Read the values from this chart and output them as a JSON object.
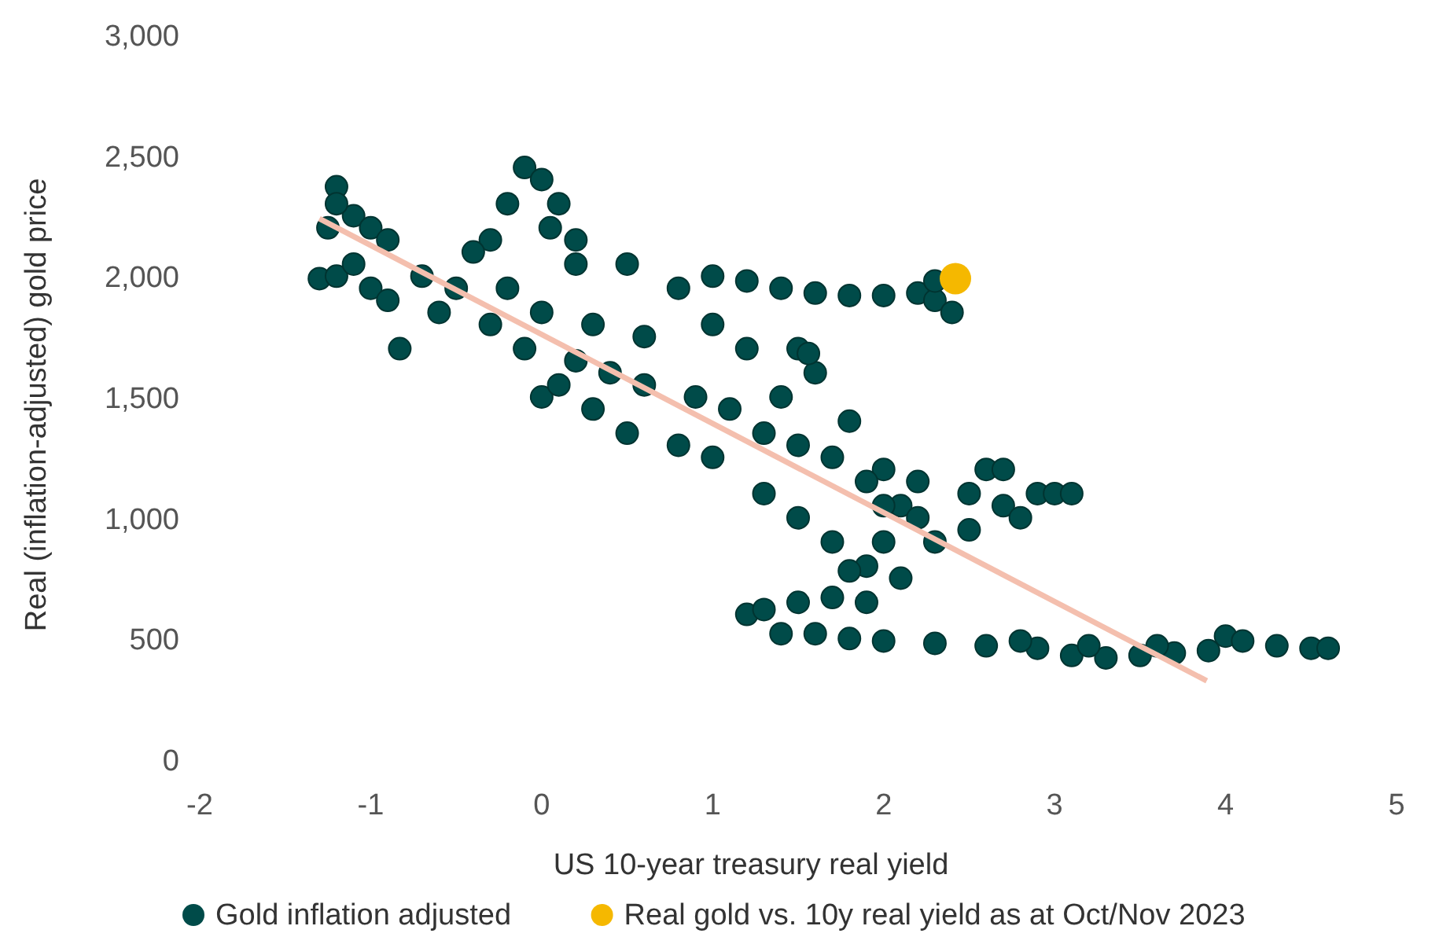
{
  "chart_data": {
    "type": "scatter",
    "xlabel": "US 10-year treasury real yield",
    "ylabel": "Real (inflation-adjusted) gold price",
    "xlim": [
      -2,
      5
    ],
    "ylim": [
      0,
      3000
    ],
    "xticks": [
      -2,
      -1,
      0,
      1,
      2,
      3,
      4,
      5
    ],
    "yticks": [
      {
        "value": 0,
        "label": "0"
      },
      {
        "value": 500,
        "label": "500"
      },
      {
        "value": 1000,
        "label": "1,000"
      },
      {
        "value": 1500,
        "label": "1,500"
      },
      {
        "value": 2000,
        "label": "2,000"
      },
      {
        "value": 2500,
        "label": "2,500"
      },
      {
        "value": 3000,
        "label": "3,000"
      }
    ],
    "grid": false,
    "legend": "bottom",
    "marker": "circle",
    "series": [
      {
        "name": "Gold inflation adjusted",
        "color": "#004b49",
        "x": [
          -1.3,
          -1.2,
          -1.25,
          -1.2,
          -1.1,
          -1.0,
          -0.9,
          -1.1,
          -1.0,
          -0.9,
          -0.83,
          -1.2,
          -0.1,
          0,
          0.1,
          -0.2,
          -0.3,
          0.2,
          0.2,
          0.05,
          0.5,
          0.8,
          1.0,
          1.2,
          1.5,
          1.6,
          0,
          0.3,
          0.5,
          0.8,
          1.0,
          1.3,
          1.5,
          1.7,
          1.0,
          1.2,
          1.4,
          1.6,
          1.8,
          2.0,
          2.2,
          2.3,
          2.4,
          2.3,
          1.56,
          2.0,
          2.2,
          2.5,
          2.7,
          2.9,
          3.0,
          3.1,
          2.6,
          2.7,
          2.8,
          2.5,
          2.0,
          1.9,
          1.8,
          2.1,
          1.9,
          1.2,
          1.3,
          1.5,
          1.7,
          1.4,
          1.6,
          1.8,
          2.0,
          2.3,
          2.6,
          2.9,
          3.1,
          3.3,
          3.5,
          3.7,
          3.9,
          4.0,
          4.1,
          4.3,
          4.5,
          4.6,
          3.2,
          2.8,
          3.6,
          -0.5,
          -0.3,
          -0.1,
          0.2,
          0.4,
          0.6,
          0.9,
          1.1,
          1.3,
          1.5,
          1.7,
          1.9,
          2.1,
          2.3,
          0,
          -0.7,
          -0.6,
          -0.4,
          0.3,
          0.6,
          1.4,
          1.8,
          2.0,
          2.2,
          0.1,
          -0.2
        ],
        "values": [
          1990,
          2000,
          2200,
          2370,
          2250,
          2200,
          2150,
          2050,
          1950,
          1900,
          1700,
          2300,
          2450,
          2400,
          2300,
          2300,
          2150,
          2050,
          2150,
          2200,
          2050,
          1950,
          1800,
          1700,
          1700,
          1600,
          1500,
          1450,
          1350,
          1300,
          1250,
          1100,
          1000,
          900,
          2000,
          1980,
          1950,
          1930,
          1920,
          1920,
          1930,
          1900,
          1850,
          1980,
          1680,
          1200,
          1150,
          1100,
          1050,
          1100,
          1100,
          1100,
          1200,
          1200,
          1000,
          950,
          900,
          800,
          780,
          750,
          650,
          600,
          620,
          650,
          670,
          520,
          520,
          500,
          490,
          480,
          470,
          460,
          430,
          420,
          430,
          440,
          450,
          510,
          490,
          470,
          460,
          460,
          470,
          490,
          470,
          1950,
          1800,
          1700,
          1650,
          1600,
          1550,
          1500,
          1450,
          1350,
          1300,
          1250,
          1150,
          1050,
          900,
          1850,
          2000,
          1850,
          2100,
          1800,
          1750,
          1500,
          1400,
          1050,
          1000,
          1550,
          1950
        ]
      },
      {
        "name": "Real gold vs. 10y real yield as at Oct/Nov 2023",
        "color": "#f5b800",
        "x": [
          2.42
        ],
        "values": [
          1990
        ]
      },
      {
        "type": "line",
        "marker": "none",
        "color": "#f4bfae",
        "x": [
          -1.3,
          3.89
        ],
        "values": [
          2238,
          325
        ]
      }
    ]
  }
}
